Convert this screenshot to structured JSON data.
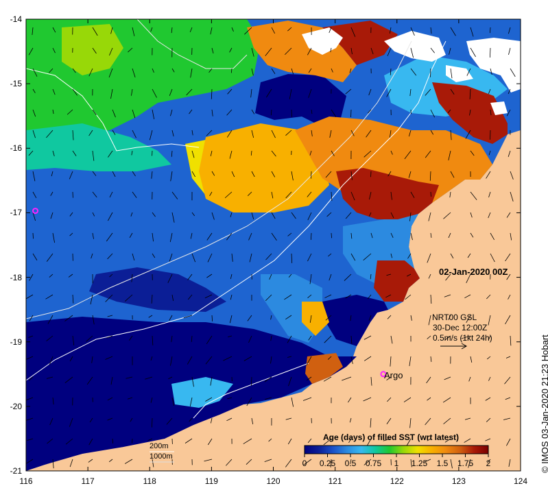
{
  "map": {
    "date_label": "02-Jan-2020 00Z",
    "product_lines": [
      "NRT00 GSL",
      "30-Dec 12:00Z",
      "0.5m/s (1kt 24h)"
    ],
    "argo_label": "Argo",
    "depth_contours": [
      "200m",
      "1000m"
    ],
    "credit": "© IMOS 03-Jan-2020 21:23 Hobart",
    "x_ticks": [
      "116",
      "117",
      "118",
      "119",
      "120",
      "121",
      "122",
      "123",
      "124"
    ],
    "y_ticks": [
      "-14",
      "-15",
      "-16",
      "-17",
      "-18",
      "-19",
      "-20",
      "-21"
    ],
    "extent": {
      "lon": [
        116,
        124
      ],
      "lat": [
        -21,
        -14
      ]
    },
    "argo_floats": [
      {
        "lon": 116.15,
        "lat": -16.97
      },
      {
        "lon": 121.78,
        "lat": -19.5
      }
    ],
    "colors": {
      "land": "#f9c898",
      "cloud": "#ffffff",
      "argo": "#ff22ff",
      "contour": "#ffffff",
      "vector": "#000000"
    }
  },
  "legend": {
    "title": "Age (days) of filled SST (wrt latest)",
    "ticks": [
      "0",
      "0.25",
      "0.5",
      "0.75",
      "1",
      "1.25",
      "1.5",
      "1.75",
      "2"
    ],
    "range": [
      0,
      2
    ],
    "colormap": [
      "#00007f",
      "#0b1e96",
      "#1a50c8",
      "#2c8ae0",
      "#38b8f0",
      "#10c8a0",
      "#20c830",
      "#98d808",
      "#f0e000",
      "#f8b000",
      "#f08a10",
      "#d06010",
      "#a81a08",
      "#7a0000"
    ]
  }
}
